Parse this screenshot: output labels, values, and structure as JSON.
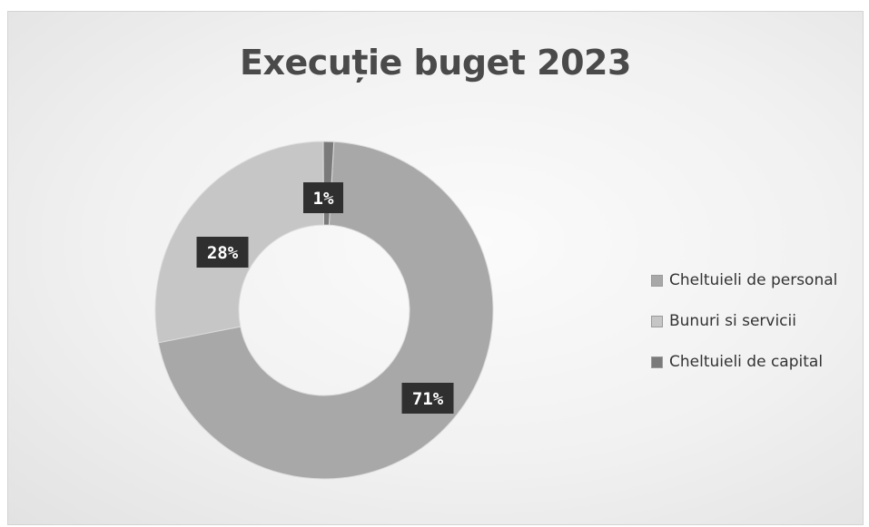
{
  "chart_data": {
    "type": "pie",
    "title": "Execuție buget 2023",
    "donut": true,
    "slices": [
      {
        "label": "Cheltuieli de personal",
        "value": 71,
        "data_label": "71%",
        "color": "#a8a8a8"
      },
      {
        "label": "Bunuri si servicii",
        "value": 28,
        "data_label": "28%",
        "color": "#c6c6c6"
      },
      {
        "label": "Cheltuieli de capital",
        "value": 1,
        "data_label": "1%",
        "color": "#7a7a7a"
      }
    ],
    "legend_position": "right",
    "label_box_color": "#2f2f2f",
    "label_text_color": "#ffffff"
  }
}
